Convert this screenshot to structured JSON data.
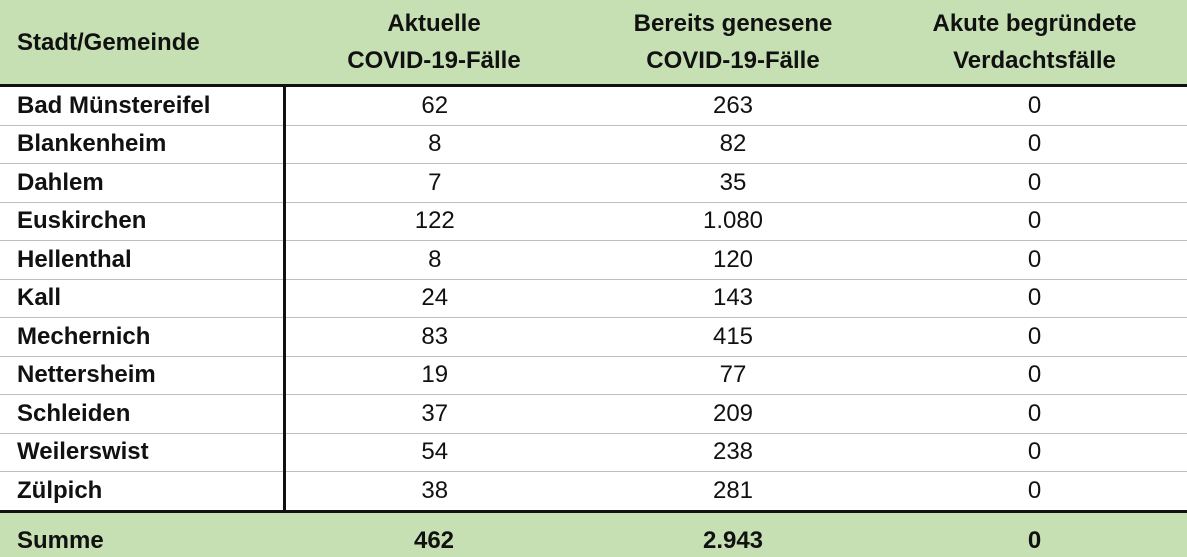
{
  "table": {
    "headers": {
      "city": "Stadt/Gemeinde",
      "current_1": "Aktuelle",
      "current_2": "COVID-19-Fälle",
      "recovered_1": "Bereits genesene",
      "recovered_2": "COVID-19-Fälle",
      "suspected_1": "Akute begründete",
      "suspected_2": "Verdachtsfälle"
    },
    "rows": [
      {
        "city": "Bad Münstereifel",
        "current": "62",
        "recovered": "263",
        "suspected": "0"
      },
      {
        "city": "Blankenheim",
        "current": "8",
        "recovered": "82",
        "suspected": "0"
      },
      {
        "city": "Dahlem",
        "current": "7",
        "recovered": "35",
        "suspected": "0"
      },
      {
        "city": "Euskirchen",
        "current": "122",
        "recovered": "1.080",
        "suspected": "0"
      },
      {
        "city": "Hellenthal",
        "current": "8",
        "recovered": "120",
        "suspected": "0"
      },
      {
        "city": "Kall",
        "current": "24",
        "recovered": "143",
        "suspected": "0"
      },
      {
        "city": "Mechernich",
        "current": "83",
        "recovered": "415",
        "suspected": "0"
      },
      {
        "city": "Nettersheim",
        "current": "19",
        "recovered": "77",
        "suspected": "0"
      },
      {
        "city": "Schleiden",
        "current": "37",
        "recovered": "209",
        "suspected": "0"
      },
      {
        "city": "Weilerswist",
        "current": "54",
        "recovered": "238",
        "suspected": "0"
      },
      {
        "city": "Zülpich",
        "current": "38",
        "recovered": "281",
        "suspected": "0"
      }
    ],
    "total": {
      "label": "Summe",
      "current": "462",
      "recovered": "2.943",
      "suspected": "0"
    }
  },
  "colors": {
    "header_bg": "#c6e0b4",
    "row_line": "#bfbfbf",
    "border": "#111111"
  }
}
